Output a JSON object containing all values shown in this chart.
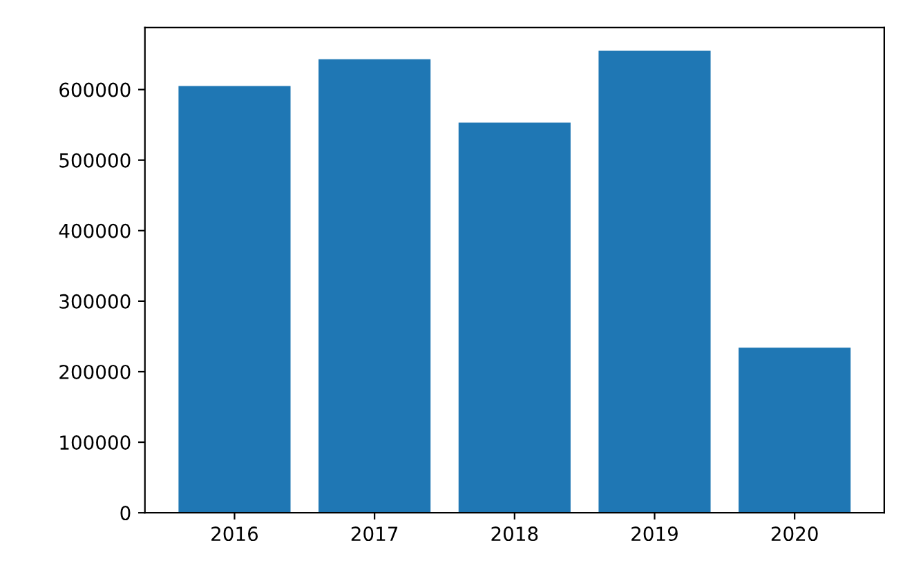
{
  "chart_data": {
    "type": "bar",
    "categories": [
      "2016",
      "2017",
      "2018",
      "2019",
      "2020"
    ],
    "values": [
      605000,
      643000,
      553000,
      655000,
      234000
    ],
    "color": "#1f77b4",
    "ylim": [
      0,
      688000
    ],
    "yticks": [
      0,
      100000,
      200000,
      300000,
      400000,
      500000,
      600000
    ],
    "grid": false
  }
}
